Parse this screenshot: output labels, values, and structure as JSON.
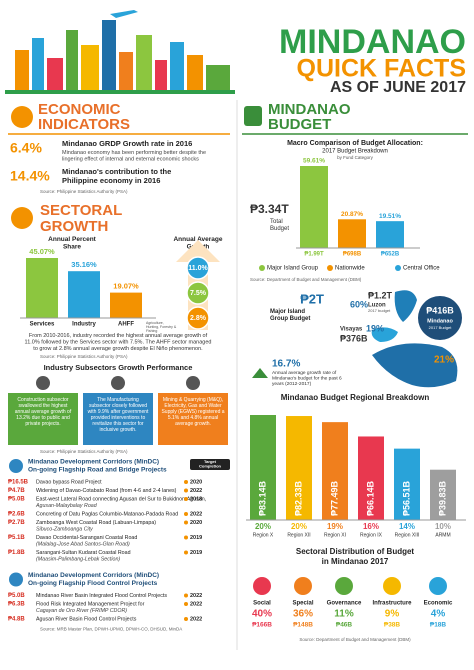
{
  "header": {
    "title": "MINDANAO",
    "subtitle": "QUICK FACTS",
    "date": "AS OF JUNE 2017"
  },
  "economic": {
    "heading": [
      "ECONOMIC",
      "INDICATORS"
    ],
    "items": [
      {
        "value": "6.4%",
        "title": "Mindanao GRDP Growth rate in 2016",
        "text": "Mindanao economy has been performing better despite the lingering effect of internal and external economic shocks"
      },
      {
        "value": "14.4%",
        "title": "Mindanao's contribution to the Philippine economy in 2016"
      }
    ],
    "source": "Source: Philippine Statistics Authority (PSA)"
  },
  "sectoral": {
    "heading": [
      "SECTORAL",
      "GROWTH"
    ],
    "share_title": "Annual Percent Share",
    "growth_title": "Annual Average Growth",
    "sectors": [
      {
        "name": "Services",
        "share": "45.07%"
      },
      {
        "name": "Industry",
        "share": "35.16%"
      },
      {
        "name": "AHFF",
        "share": "19.07%",
        "note": "Agriculture, Hunting, Forestry & Fishing"
      }
    ],
    "growth": [
      "11.0%",
      "7.5%",
      "2.8%"
    ],
    "text": "From 2010-2016, industry recorded the highest annual average growth of 11.0% followed by the Services sector with 7.5%. The AHFF sector managed to grow at 2.8% annual average growth despite El Niño phenomenon.",
    "source": "Source: Philippine Statistics Authority (PSA)"
  },
  "industry": {
    "title": "Industry Subsectors Growth Performance",
    "boxes": [
      "Construction subsector swallowed the highest annual average growth of 13.2% due to public and private projects.",
      "The Manufacturing subsector closely followed with 9.9% after government provided interventions to revitalize this sector for inclusive growth.",
      "Mining & Quarrying (M&Q), Electricity, Gas and Water Supply (EGWS) registered a 5.1% and 4.8% annual average growth."
    ],
    "source": "Source: Philippine Statistics Authority (PSA)"
  },
  "roads": {
    "title": [
      "Mindanao Development Corridors (MinDC)",
      "On-going Flagship Road and Bridge Projects"
    ],
    "badge": "Target Completion",
    "items": [
      {
        "amount": "₱16.5B",
        "name": "Davao bypass Road Project",
        "year": "2020"
      },
      {
        "amount": "₱4.7B",
        "name": "Widening of Davao-Cotabato Road (from 4-6 and 2-4 lanes)",
        "year": "2022"
      },
      {
        "amount": "₱5.0B",
        "name": "East-west Lateral Road connecting Agusan del Sur to Bukidnon-Agusan,",
        "sub": "Agusan-Malaybalay Road",
        "year": "2018"
      },
      {
        "amount": "₱2.6B",
        "name": "Concreting of Datu Paglas Columbio-Matanao-Padada Road",
        "year": "2022"
      },
      {
        "amount": "₱2.7B",
        "name": "Zamboanga West Coastal Road (Labuan-Limpapa)",
        "sub": "Sibuco-Zamboanga City",
        "year": "2020"
      },
      {
        "amount": "₱5.1B",
        "name": "Davao Occidental-Sarangani Coastal Road",
        "sub": "(Malalag-Jose Abad Santos-Glan Road)",
        "year": "2019"
      },
      {
        "amount": "₱1.8B",
        "name": "Sarangani-Sultan Kudarat Coastal Road",
        "sub": "(Maasim-Palimbang-Lebak Section)",
        "year": "2019"
      }
    ]
  },
  "flood": {
    "title": [
      "Mindanao Development Corridors (MinDC)",
      "On-going Flagship Flood Control Projects"
    ],
    "items": [
      {
        "amount": "₱5.0B",
        "name": "Mindanao River Basin Integrated Flood Control Projects",
        "year": "2022"
      },
      {
        "amount": "₱6.3B",
        "name": "Flood Risk Integrated Management Project for",
        "sub": "Cagayan de Oro River (FRIMP CDOR)",
        "year": "2022"
      },
      {
        "amount": "₱4.8B",
        "name": "Agusan River Basin Flood Control Projects",
        "year": "2022"
      }
    ],
    "source": "Source: MRB Master Plan, DPWH-UPMO, DPWH-CO, DHSUD, MinDA"
  },
  "budget": {
    "heading": [
      "MINDANAO",
      "BUDGET"
    ],
    "title": "Macro Comparison of Budget Allocation:",
    "subtitle": "2017 Budget Breakdown",
    "note": "by Fund Category",
    "total": "₱3.34T",
    "total_label": "Total Budget",
    "bars": [
      {
        "name": "Major Island Group",
        "pct": "59.61%",
        "amount": "₱1.99T",
        "color": "#8cc63f"
      },
      {
        "name": "Nationwide",
        "pct": "20.87%",
        "amount": "₱698B",
        "color": "#f39200"
      },
      {
        "name": "Central Office",
        "pct": "19.51%",
        "amount": "₱652B",
        "color": "#29a3d9"
      }
    ],
    "source": "Source: Department of Budget and Management (DBM)"
  },
  "islands": {
    "budget": "₱2T",
    "budget_label": "Major Island Group Budget",
    "luzon": {
      "pct": "60%",
      "amount": "₱1.2T",
      "name": "Luzon",
      "note": "2017 budget"
    },
    "visayas": {
      "name": "Visayas",
      "pct": "19%",
      "amount": "₱376B"
    },
    "mindanao": {
      "amount": "₱416B",
      "name": "Mindanao",
      "note": "2017 Budget",
      "pct": "21%"
    },
    "growth": {
      "value": "16.7%",
      "text": "Annual average growth rate of Mindanao's budget for the past 6 years (2012-2017)"
    }
  },
  "regional": {
    "title": "Mindanao Budget Regional Breakdown",
    "regions": [
      {
        "amount": "₱83.14B",
        "pct": "20%",
        "name": "Region X",
        "color": "#5aa83c"
      },
      {
        "amount": "₱82.33B",
        "pct": "20%",
        "name": "Region XII",
        "color": "#f5b800"
      },
      {
        "amount": "₱77.49B",
        "pct": "19%",
        "name": "Region XI",
        "color": "#f07f1d"
      },
      {
        "amount": "₱66.14B",
        "pct": "16%",
        "name": "Region IX",
        "color": "#e8384f"
      },
      {
        "amount": "₱56.51B",
        "pct": "14%",
        "name": "Region XIII",
        "color": "#29a3d9"
      },
      {
        "amount": "₱39.83B",
        "pct": "10%",
        "name": "ARMM",
        "color": "#9e9e9e"
      }
    ]
  },
  "distribution": {
    "title": [
      "Sectoral Distribution of Budget",
      "in Mindanao 2017"
    ],
    "sectors": [
      {
        "name": "Social",
        "pct": "40%",
        "amount": "₱166B",
        "color": "#e8384f"
      },
      {
        "name": "Special",
        "pct": "36%",
        "amount": "₱148B",
        "color": "#f07f1d"
      },
      {
        "name": "Governance",
        "pct": "11%",
        "amount": "₱46B",
        "color": "#5aa83c"
      },
      {
        "name": "Infrastructure",
        "pct": "9%",
        "amount": "₱38B",
        "color": "#f5b800"
      },
      {
        "name": "Economic",
        "pct": "4%",
        "amount": "₱18B",
        "color": "#29a3d9"
      }
    ],
    "source": "Source: Department of Budget and Management (DBM)"
  }
}
